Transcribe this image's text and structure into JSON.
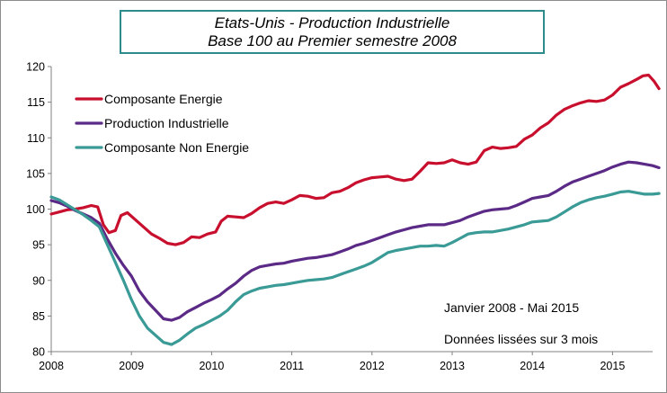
{
  "title": {
    "line1": "Etats-Unis  - Production  Industrielle",
    "line2": "Base 100 au Premier semestre 2008"
  },
  "notes": {
    "period": "Janvier 2008 - Mai 2015",
    "smoothing": "Données lissées sur 3 mois"
  },
  "chart_data": {
    "type": "line",
    "title": "Etats-Unis  - Production  Industrielle / Base 100 au Premier semestre 2008",
    "xlabel": "",
    "ylabel": "",
    "xlim": [
      2008,
      2015.5
    ],
    "ylim": [
      80,
      120
    ],
    "yticks": [
      80,
      85,
      90,
      95,
      100,
      105,
      110,
      115,
      120
    ],
    "xticks": [
      "2008",
      "2009",
      "2010",
      "2011",
      "2012",
      "2013",
      "2014",
      "2015"
    ],
    "grid": false,
    "legend": "top-left",
    "series": [
      {
        "name": "Composante Energie",
        "color": "#c8102e",
        "points": [
          [
            2008.0,
            99.3
          ],
          [
            2008.1,
            99.6
          ],
          [
            2008.2,
            99.9
          ],
          [
            2008.3,
            100.0
          ],
          [
            2008.4,
            100.2
          ],
          [
            2008.5,
            100.5
          ],
          [
            2008.58,
            100.3
          ],
          [
            2008.65,
            97.8
          ],
          [
            2008.72,
            96.7
          ],
          [
            2008.8,
            97.0
          ],
          [
            2008.87,
            99.1
          ],
          [
            2008.95,
            99.5
          ],
          [
            2009.05,
            98.5
          ],
          [
            2009.15,
            97.5
          ],
          [
            2009.25,
            96.5
          ],
          [
            2009.35,
            95.9
          ],
          [
            2009.45,
            95.2
          ],
          [
            2009.55,
            95.0
          ],
          [
            2009.65,
            95.3
          ],
          [
            2009.75,
            96.1
          ],
          [
            2009.85,
            96.0
          ],
          [
            2009.95,
            96.5
          ],
          [
            2010.05,
            96.8
          ],
          [
            2010.12,
            98.3
          ],
          [
            2010.2,
            99.0
          ],
          [
            2010.3,
            98.9
          ],
          [
            2010.4,
            98.8
          ],
          [
            2010.5,
            99.4
          ],
          [
            2010.6,
            100.2
          ],
          [
            2010.7,
            100.8
          ],
          [
            2010.8,
            101.0
          ],
          [
            2010.9,
            100.8
          ],
          [
            2011.0,
            101.3
          ],
          [
            2011.1,
            101.9
          ],
          [
            2011.2,
            101.8
          ],
          [
            2011.3,
            101.5
          ],
          [
            2011.4,
            101.6
          ],
          [
            2011.5,
            102.3
          ],
          [
            2011.6,
            102.5
          ],
          [
            2011.7,
            103.0
          ],
          [
            2011.8,
            103.7
          ],
          [
            2011.9,
            104.1
          ],
          [
            2012.0,
            104.4
          ],
          [
            2012.1,
            104.5
          ],
          [
            2012.2,
            104.6
          ],
          [
            2012.3,
            104.2
          ],
          [
            2012.4,
            104.0
          ],
          [
            2012.5,
            104.2
          ],
          [
            2012.6,
            105.3
          ],
          [
            2012.7,
            106.5
          ],
          [
            2012.8,
            106.4
          ],
          [
            2012.9,
            106.5
          ],
          [
            2013.0,
            106.9
          ],
          [
            2013.1,
            106.5
          ],
          [
            2013.2,
            106.3
          ],
          [
            2013.3,
            106.6
          ],
          [
            2013.4,
            108.2
          ],
          [
            2013.5,
            108.7
          ],
          [
            2013.6,
            108.5
          ],
          [
            2013.7,
            108.6
          ],
          [
            2013.8,
            108.8
          ],
          [
            2013.9,
            109.8
          ],
          [
            2014.0,
            110.4
          ],
          [
            2014.1,
            111.4
          ],
          [
            2014.2,
            112.1
          ],
          [
            2014.3,
            113.2
          ],
          [
            2014.4,
            114.0
          ],
          [
            2014.5,
            114.5
          ],
          [
            2014.6,
            114.9
          ],
          [
            2014.7,
            115.2
          ],
          [
            2014.8,
            115.1
          ],
          [
            2014.9,
            115.3
          ],
          [
            2015.0,
            116.0
          ],
          [
            2015.1,
            117.1
          ],
          [
            2015.2,
            117.6
          ],
          [
            2015.3,
            118.2
          ],
          [
            2015.38,
            118.7
          ],
          [
            2015.45,
            118.8
          ],
          [
            2015.52,
            117.9
          ],
          [
            2015.58,
            116.9
          ]
        ]
      },
      {
        "name": "Production Industrielle",
        "color": "#5b2a86",
        "points": [
          [
            2008.0,
            101.2
          ],
          [
            2008.1,
            100.9
          ],
          [
            2008.2,
            100.4
          ],
          [
            2008.3,
            99.8
          ],
          [
            2008.4,
            99.3
          ],
          [
            2008.5,
            98.8
          ],
          [
            2008.6,
            98.0
          ],
          [
            2008.7,
            95.8
          ],
          [
            2008.8,
            93.8
          ],
          [
            2008.9,
            92.1
          ],
          [
            2009.0,
            90.6
          ],
          [
            2009.1,
            88.5
          ],
          [
            2009.2,
            87.0
          ],
          [
            2009.3,
            85.8
          ],
          [
            2009.4,
            84.6
          ],
          [
            2009.5,
            84.4
          ],
          [
            2009.6,
            84.8
          ],
          [
            2009.7,
            85.6
          ],
          [
            2009.8,
            86.2
          ],
          [
            2009.9,
            86.8
          ],
          [
            2010.0,
            87.3
          ],
          [
            2010.1,
            87.9
          ],
          [
            2010.2,
            88.8
          ],
          [
            2010.3,
            89.6
          ],
          [
            2010.4,
            90.6
          ],
          [
            2010.5,
            91.4
          ],
          [
            2010.6,
            91.9
          ],
          [
            2010.7,
            92.1
          ],
          [
            2010.8,
            92.3
          ],
          [
            2010.9,
            92.4
          ],
          [
            2011.0,
            92.7
          ],
          [
            2011.1,
            92.9
          ],
          [
            2011.2,
            93.1
          ],
          [
            2011.3,
            93.2
          ],
          [
            2011.4,
            93.4
          ],
          [
            2011.5,
            93.6
          ],
          [
            2011.6,
            94.0
          ],
          [
            2011.7,
            94.4
          ],
          [
            2011.8,
            94.9
          ],
          [
            2011.9,
            95.2
          ],
          [
            2012.0,
            95.6
          ],
          [
            2012.1,
            96.0
          ],
          [
            2012.2,
            96.4
          ],
          [
            2012.3,
            96.8
          ],
          [
            2012.4,
            97.1
          ],
          [
            2012.5,
            97.4
          ],
          [
            2012.6,
            97.6
          ],
          [
            2012.7,
            97.8
          ],
          [
            2012.8,
            97.8
          ],
          [
            2012.9,
            97.8
          ],
          [
            2013.0,
            98.1
          ],
          [
            2013.1,
            98.4
          ],
          [
            2013.2,
            98.9
          ],
          [
            2013.3,
            99.3
          ],
          [
            2013.4,
            99.7
          ],
          [
            2013.5,
            99.9
          ],
          [
            2013.6,
            100.0
          ],
          [
            2013.7,
            100.1
          ],
          [
            2013.8,
            100.5
          ],
          [
            2013.9,
            101.0
          ],
          [
            2014.0,
            101.5
          ],
          [
            2014.1,
            101.7
          ],
          [
            2014.2,
            101.9
          ],
          [
            2014.3,
            102.5
          ],
          [
            2014.4,
            103.2
          ],
          [
            2014.5,
            103.8
          ],
          [
            2014.6,
            104.2
          ],
          [
            2014.7,
            104.6
          ],
          [
            2014.8,
            105.0
          ],
          [
            2014.9,
            105.4
          ],
          [
            2015.0,
            105.9
          ],
          [
            2015.1,
            106.3
          ],
          [
            2015.2,
            106.6
          ],
          [
            2015.3,
            106.5
          ],
          [
            2015.4,
            106.3
          ],
          [
            2015.5,
            106.1
          ],
          [
            2015.58,
            105.8
          ]
        ]
      },
      {
        "name": "Composante Non Energie",
        "color": "#3a9a96",
        "points": [
          [
            2008.0,
            101.7
          ],
          [
            2008.1,
            101.3
          ],
          [
            2008.2,
            100.6
          ],
          [
            2008.3,
            99.9
          ],
          [
            2008.4,
            99.2
          ],
          [
            2008.5,
            98.4
          ],
          [
            2008.6,
            97.5
          ],
          [
            2008.7,
            95.0
          ],
          [
            2008.8,
            92.5
          ],
          [
            2008.9,
            90.0
          ],
          [
            2009.0,
            87.3
          ],
          [
            2009.1,
            85.0
          ],
          [
            2009.2,
            83.3
          ],
          [
            2009.3,
            82.3
          ],
          [
            2009.4,
            81.3
          ],
          [
            2009.5,
            81.0
          ],
          [
            2009.6,
            81.6
          ],
          [
            2009.7,
            82.5
          ],
          [
            2009.8,
            83.3
          ],
          [
            2009.9,
            83.8
          ],
          [
            2010.0,
            84.4
          ],
          [
            2010.1,
            85.0
          ],
          [
            2010.2,
            85.8
          ],
          [
            2010.3,
            87.0
          ],
          [
            2010.4,
            88.0
          ],
          [
            2010.5,
            88.5
          ],
          [
            2010.6,
            88.9
          ],
          [
            2010.7,
            89.1
          ],
          [
            2010.8,
            89.3
          ],
          [
            2010.9,
            89.4
          ],
          [
            2011.0,
            89.6
          ],
          [
            2011.1,
            89.8
          ],
          [
            2011.2,
            90.0
          ],
          [
            2011.3,
            90.1
          ],
          [
            2011.4,
            90.2
          ],
          [
            2011.5,
            90.4
          ],
          [
            2011.6,
            90.8
          ],
          [
            2011.7,
            91.2
          ],
          [
            2011.8,
            91.6
          ],
          [
            2011.9,
            92.0
          ],
          [
            2012.0,
            92.5
          ],
          [
            2012.1,
            93.2
          ],
          [
            2012.2,
            93.9
          ],
          [
            2012.3,
            94.2
          ],
          [
            2012.4,
            94.4
          ],
          [
            2012.5,
            94.6
          ],
          [
            2012.6,
            94.8
          ],
          [
            2012.7,
            94.8
          ],
          [
            2012.8,
            94.9
          ],
          [
            2012.9,
            94.8
          ],
          [
            2013.0,
            95.3
          ],
          [
            2013.1,
            95.9
          ],
          [
            2013.2,
            96.5
          ],
          [
            2013.3,
            96.7
          ],
          [
            2013.4,
            96.8
          ],
          [
            2013.5,
            96.8
          ],
          [
            2013.6,
            97.0
          ],
          [
            2013.7,
            97.2
          ],
          [
            2013.8,
            97.5
          ],
          [
            2013.9,
            97.8
          ],
          [
            2014.0,
            98.2
          ],
          [
            2014.1,
            98.3
          ],
          [
            2014.2,
            98.4
          ],
          [
            2014.3,
            98.9
          ],
          [
            2014.4,
            99.6
          ],
          [
            2014.5,
            100.3
          ],
          [
            2014.6,
            100.9
          ],
          [
            2014.7,
            101.3
          ],
          [
            2014.8,
            101.6
          ],
          [
            2014.9,
            101.8
          ],
          [
            2015.0,
            102.1
          ],
          [
            2015.1,
            102.4
          ],
          [
            2015.2,
            102.5
          ],
          [
            2015.3,
            102.3
          ],
          [
            2015.4,
            102.1
          ],
          [
            2015.5,
            102.1
          ],
          [
            2015.58,
            102.2
          ]
        ]
      }
    ]
  }
}
